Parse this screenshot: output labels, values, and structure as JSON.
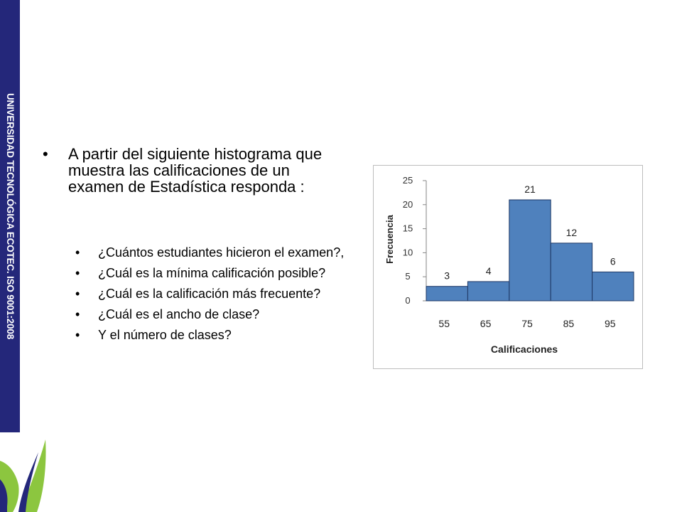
{
  "sidebar": {
    "text": "UNIVERSIDAD TECNOLÓGICA ECOTEC. ISO 9001:2008"
  },
  "logo": {
    "icon": "leaf-logo-icon",
    "colors": [
      "#8cc63f",
      "#24277a"
    ]
  },
  "content": {
    "intro": "A partir del siguiente histograma que muestra las calificaciones de un examen de Estadística responda :",
    "questions": [
      "¿Cuántos estudiantes hicieron el examen?,",
      "¿Cuál es la mínima calificación posible?",
      "¿Cuál es la calificación más frecuente?",
      "¿Cuál es el ancho de clase?",
      "Y el número de clases?"
    ]
  },
  "chart_data": {
    "type": "bar",
    "categories": [
      "55",
      "65",
      "75",
      "85",
      "95"
    ],
    "values": [
      3,
      4,
      21,
      12,
      6
    ],
    "xlabel": "Calificaciones",
    "ylabel": "Frecuencia",
    "ylim": [
      0,
      25
    ],
    "yticks": [
      0,
      5,
      10,
      15,
      20,
      25
    ],
    "grid": false,
    "legend": "none",
    "bar_color": "#4f81bd",
    "bar_edge_color": "#1f3864"
  }
}
